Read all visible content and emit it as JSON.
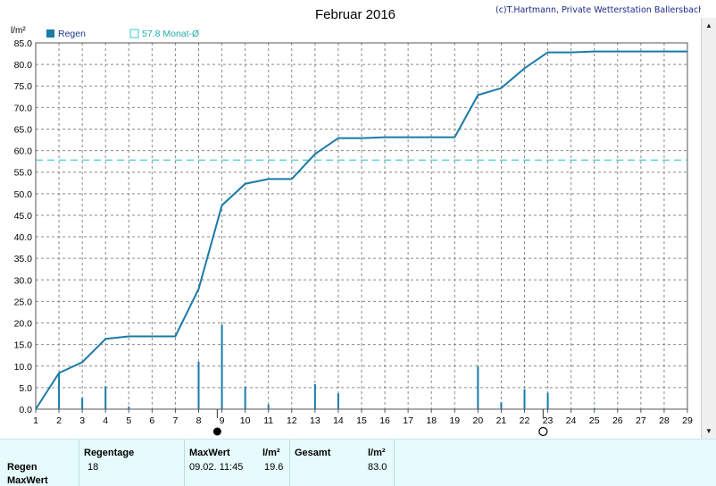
{
  "header": {
    "title": "Februar 2016",
    "copyright": "(c)T.Hartmann, Private Wetterstation Ballersbach",
    "unit_label": "l/m²"
  },
  "legend": {
    "rain_label": "Regen",
    "avg_label": "57.8 Monat-Ø"
  },
  "colors": {
    "line": "#1a7aa8",
    "bars": "#1a7aa8",
    "avg_line": "#33cccc",
    "grid": "#888888",
    "stats_bg": "#e6fbfb"
  },
  "chart_data": {
    "type": "line",
    "x": [
      1,
      2,
      3,
      4,
      5,
      6,
      7,
      8,
      9,
      10,
      11,
      12,
      13,
      14,
      15,
      16,
      17,
      18,
      19,
      20,
      21,
      22,
      23,
      24,
      25,
      26,
      27,
      28,
      29
    ],
    "xlim": [
      1,
      29
    ],
    "ylim": [
      0,
      85
    ],
    "yticks": [
      "0.0",
      "5.0",
      "10.0",
      "15.0",
      "20.0",
      "25.0",
      "30.0",
      "35.0",
      "40.0",
      "45.0",
      "50.0",
      "55.0",
      "60.0",
      "65.0",
      "70.0",
      "75.0",
      "80.0",
      "85.0"
    ],
    "xticks": [
      "1",
      "2",
      "3",
      "4",
      "5",
      "6",
      "7",
      "8",
      "9",
      "10",
      "11",
      "12",
      "13",
      "14",
      "15",
      "16",
      "17",
      "18",
      "19",
      "20",
      "21",
      "22",
      "23",
      "24",
      "25",
      "26",
      "27",
      "28",
      "29"
    ],
    "grid": true,
    "series": [
      {
        "name": "Regen",
        "cumulative": [
          [
            1,
            0
          ],
          [
            2,
            8.4
          ],
          [
            3,
            10.9
          ],
          [
            4,
            16.3
          ],
          [
            5,
            16.9
          ],
          [
            6,
            16.9
          ],
          [
            7,
            16.9
          ],
          [
            8,
            27.9
          ],
          [
            9,
            47.3
          ],
          [
            10,
            52.3
          ],
          [
            11,
            53.4
          ],
          [
            12,
            53.4
          ],
          [
            13,
            59.2
          ],
          [
            14,
            62.9
          ],
          [
            15,
            62.9
          ],
          [
            16,
            63.1
          ],
          [
            17,
            63.1
          ],
          [
            18,
            63.1
          ],
          [
            19,
            63.1
          ],
          [
            20,
            72.9
          ],
          [
            21,
            74.5
          ],
          [
            22,
            79.1
          ],
          [
            23,
            82.8
          ],
          [
            24,
            82.8
          ],
          [
            25,
            83.0
          ],
          [
            26,
            83.0
          ],
          [
            27,
            83.0
          ],
          [
            28,
            83.0
          ],
          [
            29,
            83.0
          ]
        ],
        "daily": [
          [
            2,
            8.4
          ],
          [
            3,
            2.6
          ],
          [
            4,
            5.3
          ],
          [
            5,
            0.6
          ],
          [
            8,
            11.0
          ],
          [
            9,
            19.6
          ],
          [
            10,
            5.2
          ],
          [
            11,
            1.1
          ],
          [
            13,
            5.8
          ],
          [
            14,
            3.7
          ],
          [
            20,
            9.9
          ],
          [
            21,
            1.6
          ],
          [
            22,
            4.6
          ],
          [
            23,
            3.8
          ],
          [
            25,
            0.2
          ]
        ]
      }
    ],
    "average": 57.8,
    "markers": [
      {
        "type": "filled-circle",
        "x": 8.8
      },
      {
        "type": "open-circle",
        "x": 22.8
      }
    ]
  },
  "stats": {
    "row1_label": "Regen",
    "row2_label": "MaxWert",
    "regentage_label": "Regentage",
    "regentage_value": "18",
    "maxwert_label": "MaxWert",
    "maxwert_unit": "l/m²",
    "maxwert_date": "09.02.  11:45",
    "maxwert_value": "19.6",
    "gesamt_label": "Gesamt",
    "gesamt_unit": "l/m²",
    "gesamt_value": "83.0"
  }
}
